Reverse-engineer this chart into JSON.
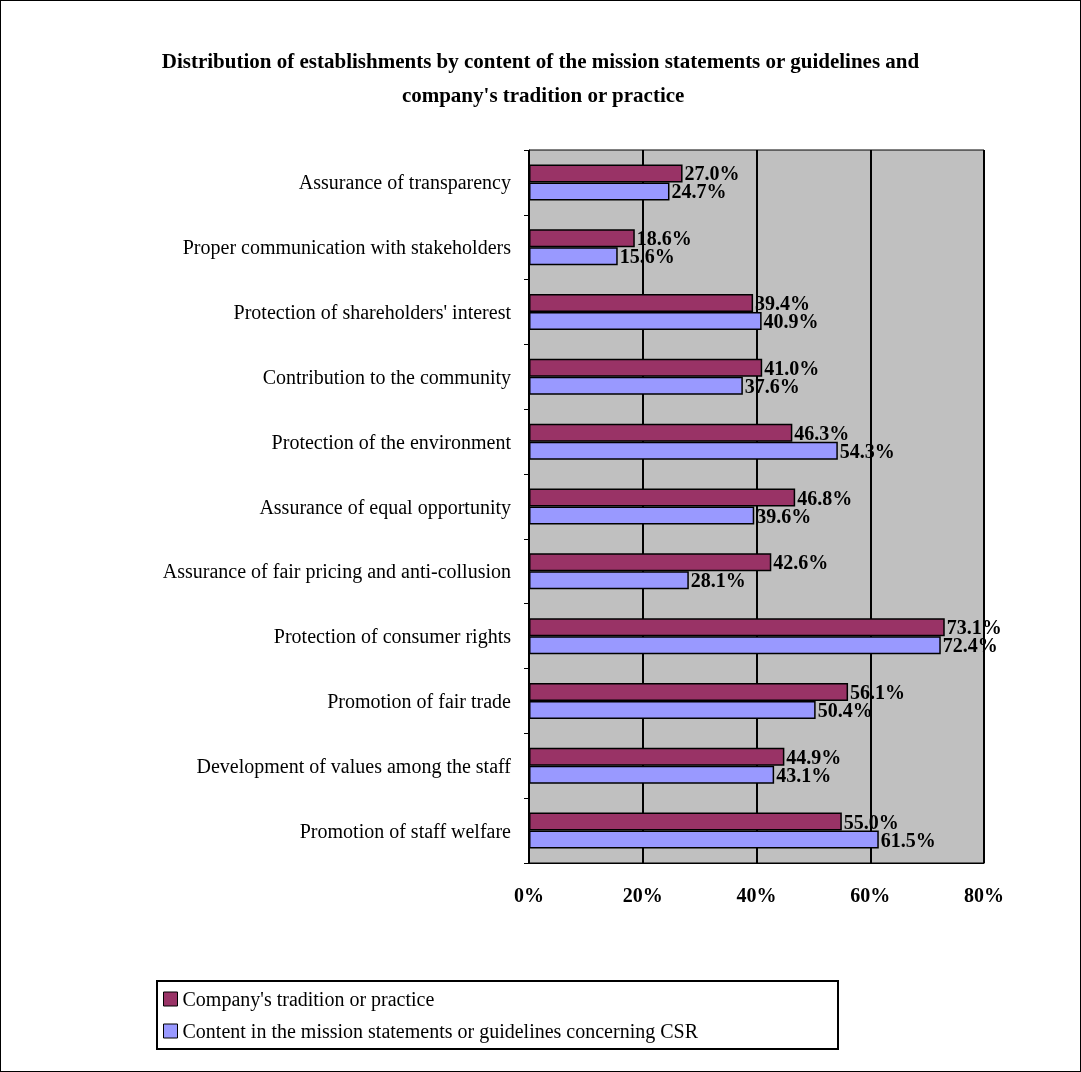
{
  "chart_data": {
    "type": "bar",
    "orientation": "horizontal",
    "title": "Distribution of establishments by content of the mission statements or guidelines and company's tradition or practice",
    "categories": [
      "Assurance of transparency",
      "Proper communication with stakeholders",
      "Protection of shareholders' interest",
      "Contribution to the community",
      "Protection of the environment",
      "Assurance of equal opportunity",
      "Assurance of fair pricing and anti-collusion",
      "Protection of consumer rights",
      "Promotion of fair trade",
      "Development of values among the staff",
      "Promotion of staff welfare"
    ],
    "series": [
      {
        "name": "Company's tradition or practice",
        "color": "#993366",
        "values": [
          27.0,
          18.6,
          39.4,
          41.0,
          46.3,
          46.8,
          42.6,
          73.1,
          56.1,
          44.9,
          55.0
        ],
        "value_labels": [
          "27.0%",
          "18.6%",
          "39.4%",
          "41.0%",
          "46.3%",
          "46.8%",
          "42.6%",
          "73.1%",
          "56.1%",
          "44.9%",
          "55.0%"
        ]
      },
      {
        "name": "Content in the mission statements or guidelines concerning CSR",
        "color": "#9999ff",
        "values": [
          24.7,
          15.6,
          40.9,
          37.6,
          54.3,
          39.6,
          28.1,
          72.4,
          50.4,
          43.1,
          61.5
        ],
        "value_labels": [
          "24.7%",
          "15.6%",
          "40.9%",
          "37.6%",
          "54.3%",
          "39.6%",
          "28.1%",
          "72.4%",
          "50.4%",
          "43.1%",
          "61.5%"
        ]
      }
    ],
    "xlim": [
      0,
      80
    ],
    "xticks": [
      {
        "value": 0,
        "label": "0%"
      },
      {
        "value": 20,
        "label": "20%"
      },
      {
        "value": 40,
        "label": "40%"
      },
      {
        "value": 60,
        "label": "60%"
      },
      {
        "value": 80,
        "label": "80%"
      }
    ],
    "grid": "x",
    "legend": "bottom"
  }
}
